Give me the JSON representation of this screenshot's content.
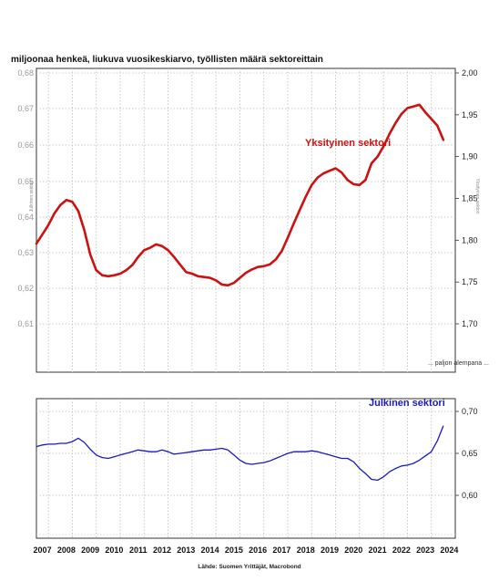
{
  "chart_data": [
    {
      "type": "line",
      "title": "miljoonaa henkeä, liukuva vuosikeskiarvo, työllisten määrä sektoreittain",
      "ylabel_left": "Julkinen sektori",
      "ylabel_right": "Yksityinen sektori",
      "note": "... paljon alempana ...",
      "series_label": "Yksityinen sektori",
      "color": "#cc1111",
      "y_ticks_left": [
        "0,61",
        "0,62",
        "0,63",
        "0,64",
        "0,65",
        "0,66",
        "0,67",
        "0,68"
      ],
      "y_ticks_right": [
        "1,70",
        "1,75",
        "1,80",
        "1,85",
        "1,90",
        "1,95",
        "2,00"
      ],
      "ylim_right": [
        1.7,
        2.0
      ],
      "grid": true,
      "x": [
        2007.0,
        2007.25,
        2007.5,
        2007.75,
        2008.0,
        2008.25,
        2008.5,
        2008.75,
        2009.0,
        2009.25,
        2009.5,
        2009.75,
        2010.0,
        2010.25,
        2010.5,
        2010.75,
        2011.0,
        2011.25,
        2011.5,
        2011.75,
        2012.0,
        2012.25,
        2012.5,
        2012.75,
        2013.0,
        2013.25,
        2013.5,
        2013.75,
        2014.0,
        2014.25,
        2014.5,
        2014.75,
        2015.0,
        2015.25,
        2015.5,
        2015.75,
        2016.0,
        2016.25,
        2016.5,
        2016.75,
        2017.0,
        2017.25,
        2017.5,
        2017.75,
        2018.0,
        2018.25,
        2018.5,
        2018.75,
        2019.0,
        2019.25,
        2019.5,
        2019.75,
        2020.0,
        2020.25,
        2020.5,
        2020.75,
        2021.0,
        2021.25,
        2021.5,
        2021.75,
        2022.0,
        2022.25,
        2022.5,
        2022.75,
        2023.0,
        2023.25,
        2023.5,
        2023.75,
        2024.0
      ],
      "y": [
        1.796,
        1.807,
        1.818,
        1.832,
        1.842,
        1.848,
        1.846,
        1.835,
        1.812,
        1.783,
        1.764,
        1.758,
        1.757,
        1.758,
        1.76,
        1.764,
        1.77,
        1.78,
        1.788,
        1.791,
        1.795,
        1.793,
        1.788,
        1.78,
        1.771,
        1.762,
        1.76,
        1.757,
        1.756,
        1.755,
        1.752,
        1.747,
        1.746,
        1.749,
        1.755,
        1.761,
        1.765,
        1.768,
        1.769,
        1.771,
        1.777,
        1.787,
        1.803,
        1.82,
        1.836,
        1.852,
        1.866,
        1.875,
        1.88,
        1.883,
        1.886,
        1.881,
        1.872,
        1.867,
        1.866,
        1.872,
        1.892,
        1.9,
        1.912,
        1.927,
        1.94,
        1.951,
        1.958,
        1.96,
        1.962,
        1.953,
        1.945,
        1.937,
        1.92
      ]
    },
    {
      "type": "line",
      "series_label": "Julkinen sektori",
      "color": "#1a1abf",
      "y_ticks_right": [
        "0,60",
        "0,65",
        "0,70"
      ],
      "ylim_right": [
        0.55,
        0.72
      ],
      "grid": true,
      "x": [
        2007.0,
        2007.25,
        2007.5,
        2007.75,
        2008.0,
        2008.25,
        2008.5,
        2008.75,
        2009.0,
        2009.25,
        2009.5,
        2009.75,
        2010.0,
        2010.25,
        2010.5,
        2010.75,
        2011.0,
        2011.25,
        2011.5,
        2011.75,
        2012.0,
        2012.25,
        2012.5,
        2012.75,
        2013.0,
        2013.25,
        2013.5,
        2013.75,
        2014.0,
        2014.25,
        2014.5,
        2014.75,
        2015.0,
        2015.25,
        2015.5,
        2015.75,
        2016.0,
        2016.25,
        2016.5,
        2016.75,
        2017.0,
        2017.25,
        2017.5,
        2017.75,
        2018.0,
        2018.25,
        2018.5,
        2018.75,
        2019.0,
        2019.25,
        2019.5,
        2019.75,
        2020.0,
        2020.25,
        2020.5,
        2020.75,
        2021.0,
        2021.25,
        2021.5,
        2021.75,
        2022.0,
        2022.25,
        2022.5,
        2022.75,
        2023.0,
        2023.25,
        2023.5,
        2023.75,
        2024.0
      ],
      "y": [
        0.658,
        0.66,
        0.661,
        0.661,
        0.662,
        0.662,
        0.664,
        0.668,
        0.663,
        0.655,
        0.648,
        0.645,
        0.644,
        0.646,
        0.648,
        0.65,
        0.652,
        0.654,
        0.653,
        0.652,
        0.652,
        0.654,
        0.652,
        0.649,
        0.65,
        0.651,
        0.652,
        0.653,
        0.654,
        0.654,
        0.655,
        0.656,
        0.654,
        0.648,
        0.642,
        0.638,
        0.637,
        0.638,
        0.639,
        0.641,
        0.644,
        0.647,
        0.65,
        0.652,
        0.652,
        0.652,
        0.653,
        0.652,
        0.65,
        0.648,
        0.646,
        0.644,
        0.644,
        0.64,
        0.632,
        0.626,
        0.619,
        0.618,
        0.622,
        0.628,
        0.632,
        0.635,
        0.636,
        0.638,
        0.642,
        0.647,
        0.652,
        0.665,
        0.683
      ]
    }
  ],
  "texts": {
    "title": "miljoonaa henkeä, liukuva vuosikeskiarvo, työllisten määrä sektoreittain",
    "note": "... paljon alempana ...",
    "source": "Lähde: Suomen Yrittäjät, Macrobond"
  },
  "x_axis": {
    "labels": [
      "2007",
      "2008",
      "2009",
      "2010",
      "2011",
      "2012",
      "2013",
      "2014",
      "2015",
      "2016",
      "2017",
      "2018",
      "2019",
      "2020",
      "2021",
      "2022",
      "2023",
      "2024"
    ]
  }
}
